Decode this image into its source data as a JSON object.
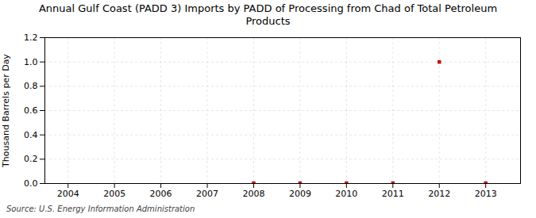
{
  "chart_data": {
    "type": "scatter",
    "title": "Annual Gulf Coast (PADD 3) Imports by PADD of Processing from Chad of Total Petroleum\nProducts",
    "ylabel": "Thousand Barrels per Day",
    "source": "Source: U.S. Energy Information Administration",
    "x": [
      2008,
      2009,
      2010,
      2011,
      2012,
      2013
    ],
    "values": [
      0.003,
      0.003,
      0.003,
      0.003,
      1.0,
      0.003
    ],
    "color": "#cc0000",
    "marker": "square",
    "xlim": [
      2003.5,
      2013.75
    ],
    "xticks": [
      2004,
      2005,
      2006,
      2007,
      2008,
      2009,
      2010,
      2011,
      2012,
      2013
    ],
    "ylim": [
      0.0,
      1.2
    ],
    "yticks": [
      {
        "value": 0.0,
        "label": "0.0"
      },
      0.2,
      0.4,
      0.6,
      0.8,
      {
        "value": 1.0,
        "label": "1.0"
      },
      1.2
    ],
    "grid": true
  }
}
